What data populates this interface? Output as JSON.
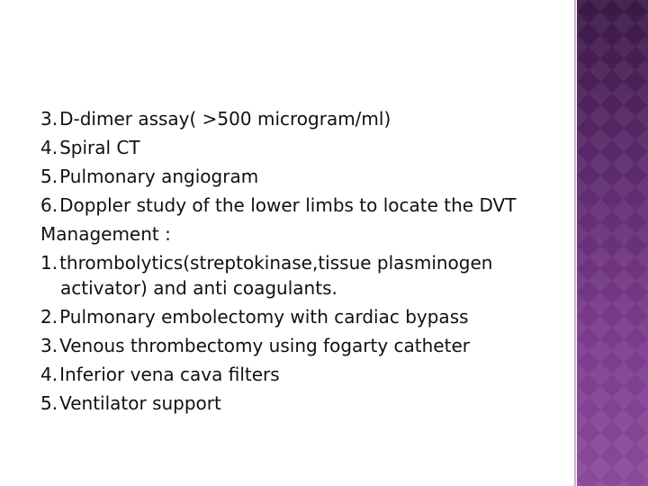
{
  "diagnosis_items": [
    {
      "number": "3.",
      "text": "D-dimer assay( >500 microgram/ml)"
    },
    {
      "number": "4.",
      "text": "Spiral CT"
    },
    {
      "number": "5.",
      "text": "Pulmonary angiogram"
    },
    {
      "number": "6.",
      "text": "Doppler study of the lower limbs to locate the DVT"
    }
  ],
  "management": {
    "heading": "Management :",
    "items": [
      {
        "number": "1.",
        "text": "thrombolytics(streptokinase,tissue plasminogen activator) and anti coagulants."
      },
      {
        "number": "2.",
        "text": "Pulmonary embolectomy with cardiac bypass"
      },
      {
        "number": "3.",
        "text": "Venous thrombectomy using fogarty catheter"
      },
      {
        "number": "4.",
        "text": "Inferior vena cava filters"
      },
      {
        "number": "5.",
        "text": "Ventilator support"
      }
    ]
  }
}
